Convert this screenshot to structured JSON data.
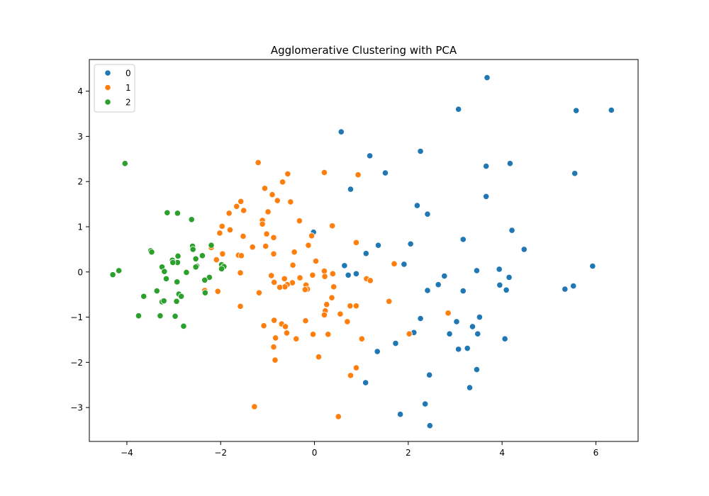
{
  "chart_data": {
    "type": "scatter",
    "title": "Agglomerative Clustering with PCA",
    "xlabel": "",
    "ylabel": "",
    "xlim": [
      -4.8,
      6.9
    ],
    "ylim": [
      -3.75,
      4.7
    ],
    "xticks": [
      -4,
      -2,
      0,
      2,
      4,
      6
    ],
    "yticks": [
      -3,
      -2,
      -1,
      0,
      1,
      2,
      3,
      4
    ],
    "grid": false,
    "legend": {
      "position": "top-left",
      "entries": [
        "0",
        "1",
        "2"
      ]
    },
    "series": [
      {
        "name": "0",
        "color": "#1f77b4",
        "points": [
          [
            3.68,
            4.3
          ],
          [
            3.07,
            3.6
          ],
          [
            5.58,
            3.57
          ],
          [
            6.33,
            3.58
          ],
          [
            0.57,
            3.1
          ],
          [
            2.26,
            2.67
          ],
          [
            1.18,
            2.57
          ],
          [
            1.51,
            2.19
          ],
          [
            3.66,
            2.34
          ],
          [
            4.17,
            2.4
          ],
          [
            5.55,
            2.18
          ],
          [
            0.77,
            1.83
          ],
          [
            3.66,
            1.67
          ],
          [
            2.19,
            1.47
          ],
          [
            2.41,
            1.28
          ],
          [
            4.21,
            0.92
          ],
          [
            3.17,
            0.72
          ],
          [
            -0.02,
            0.88
          ],
          [
            1.36,
            0.59
          ],
          [
            2.05,
            0.62
          ],
          [
            4.47,
            0.5
          ],
          [
            1.1,
            0.41
          ],
          [
            0.64,
            0.14
          ],
          [
            1.91,
            0.17
          ],
          [
            5.93,
            0.13
          ],
          [
            0.89,
            -0.04
          ],
          [
            0.72,
            -0.07
          ],
          [
            3.46,
            0.03
          ],
          [
            3.94,
            0.06
          ],
          [
            2.77,
            -0.09
          ],
          [
            4.15,
            -0.12
          ],
          [
            2.64,
            -0.28
          ],
          [
            3.95,
            -0.29
          ],
          [
            5.52,
            -0.31
          ],
          [
            5.34,
            -0.38
          ],
          [
            2.41,
            -0.41
          ],
          [
            3.17,
            -0.42
          ],
          [
            4.09,
            -0.4
          ],
          [
            2.26,
            -1.03
          ],
          [
            3.52,
            -1.0
          ],
          [
            3.03,
            -1.1
          ],
          [
            3.37,
            -1.21
          ],
          [
            2.88,
            -1.37
          ],
          [
            3.48,
            -1.37
          ],
          [
            2.12,
            -1.34
          ],
          [
            4.06,
            -1.48
          ],
          [
            1.73,
            -1.58
          ],
          [
            3.26,
            -1.69
          ],
          [
            3.07,
            -1.71
          ],
          [
            1.34,
            -1.76
          ],
          [
            3.46,
            -2.16
          ],
          [
            2.45,
            -2.28
          ],
          [
            1.09,
            -2.45
          ],
          [
            3.31,
            -2.56
          ],
          [
            2.36,
            -2.92
          ],
          [
            1.83,
            -3.15
          ],
          [
            2.46,
            -3.4
          ]
        ]
      },
      {
        "name": "1",
        "color": "#ff7f0e",
        "points": [
          [
            -1.2,
            2.42
          ],
          [
            0.21,
            2.2
          ],
          [
            -0.57,
            2.17
          ],
          [
            0.93,
            2.15
          ],
          [
            -0.68,
            1.99
          ],
          [
            -1.06,
            1.85
          ],
          [
            -0.9,
            1.71
          ],
          [
            -0.79,
            1.58
          ],
          [
            -0.51,
            1.55
          ],
          [
            -1.57,
            1.56
          ],
          [
            -1.66,
            1.45
          ],
          [
            -1.51,
            1.36
          ],
          [
            -0.99,
            1.33
          ],
          [
            -1.82,
            1.3
          ],
          [
            -1.11,
            1.14
          ],
          [
            -0.32,
            1.13
          ],
          [
            -1.11,
            1.06
          ],
          [
            0.38,
            1.02
          ],
          [
            -1.97,
            1.01
          ],
          [
            -1.8,
            0.93
          ],
          [
            -2.02,
            0.86
          ],
          [
            -1.02,
            0.84
          ],
          [
            -0.87,
            0.76
          ],
          [
            -1.52,
            0.79
          ],
          [
            -0.06,
            0.8
          ],
          [
            0.89,
            0.65
          ],
          [
            -0.13,
            0.59
          ],
          [
            -1.04,
            0.57
          ],
          [
            -1.32,
            0.55
          ],
          [
            -2.2,
            0.54
          ],
          [
            -0.43,
            0.44
          ],
          [
            -0.87,
            0.4
          ],
          [
            -1.62,
            0.37
          ],
          [
            -1.56,
            0.36
          ],
          [
            -1.96,
            0.4
          ],
          [
            -2.09,
            0.27
          ],
          [
            0.03,
            0.24
          ],
          [
            1.7,
            0.18
          ],
          [
            -0.46,
            0.15
          ],
          [
            0.21,
            0.02
          ],
          [
            -1.58,
            -0.02
          ],
          [
            0.39,
            -0.04
          ],
          [
            -0.04,
            -0.07
          ],
          [
            0.22,
            -0.1
          ],
          [
            -0.92,
            -0.08
          ],
          [
            -0.31,
            -0.13
          ],
          [
            -0.64,
            -0.15
          ],
          [
            1.11,
            -0.15
          ],
          [
            1.19,
            -0.19
          ],
          [
            -0.86,
            -0.23
          ],
          [
            -0.47,
            -0.24
          ],
          [
            -0.58,
            -0.28
          ],
          [
            -0.63,
            -0.33
          ],
          [
            -0.74,
            -0.34
          ],
          [
            -0.18,
            -0.29
          ],
          [
            0.41,
            -0.33
          ],
          [
            -0.15,
            -0.38
          ],
          [
            -0.2,
            -0.39
          ],
          [
            -1.18,
            -0.46
          ],
          [
            -2.06,
            -0.43
          ],
          [
            -2.34,
            -0.41
          ],
          [
            0.37,
            -0.57
          ],
          [
            1.59,
            -0.65
          ],
          [
            0.26,
            -0.72
          ],
          [
            -1.58,
            -0.76
          ],
          [
            0.76,
            -0.75
          ],
          [
            0.89,
            -0.75
          ],
          [
            0.23,
            -0.86
          ],
          [
            0.21,
            -0.95
          ],
          [
            0.55,
            -0.93
          ],
          [
            2.85,
            -0.91
          ],
          [
            -0.86,
            -1.07
          ],
          [
            -0.19,
            -1.08
          ],
          [
            0.7,
            -1.1
          ],
          [
            -0.7,
            -1.15
          ],
          [
            -1.08,
            -1.19
          ],
          [
            -0.62,
            -1.21
          ],
          [
            -0.59,
            -1.35
          ],
          [
            0.29,
            -1.38
          ],
          [
            -0.03,
            -1.38
          ],
          [
            2.02,
            -1.37
          ],
          [
            -0.83,
            -1.46
          ],
          [
            -0.39,
            -1.48
          ],
          [
            1.01,
            -1.48
          ],
          [
            -0.87,
            -1.66
          ],
          [
            0.09,
            -1.88
          ],
          [
            -0.84,
            -1.95
          ],
          [
            0.89,
            -2.12
          ],
          [
            0.77,
            -2.29
          ],
          [
            -1.28,
            -2.98
          ],
          [
            0.51,
            -3.2
          ]
        ]
      },
      {
        "name": "2",
        "color": "#2ca02c",
        "points": [
          [
            -4.04,
            2.4
          ],
          [
            -3.14,
            1.31
          ],
          [
            -2.92,
            1.3
          ],
          [
            -2.62,
            1.16
          ],
          [
            -2.2,
            0.59
          ],
          [
            -2.6,
            0.57
          ],
          [
            -2.59,
            0.5
          ],
          [
            -3.49,
            0.47
          ],
          [
            -3.47,
            0.44
          ],
          [
            -2.39,
            0.36
          ],
          [
            -2.91,
            0.35
          ],
          [
            -2.53,
            0.29
          ],
          [
            -3.03,
            0.26
          ],
          [
            -2.92,
            0.21
          ],
          [
            -3.02,
            0.21
          ],
          [
            -1.98,
            0.16
          ],
          [
            -1.93,
            0.12
          ],
          [
            -2.51,
            0.13
          ],
          [
            -2.53,
            0.11
          ],
          [
            -1.98,
            0.07
          ],
          [
            -3.25,
            0.11
          ],
          [
            -3.2,
            0.01
          ],
          [
            -2.73,
            -0.01
          ],
          [
            -4.17,
            0.03
          ],
          [
            -4.3,
            -0.06
          ],
          [
            -2.24,
            -0.12
          ],
          [
            -3.16,
            -0.15
          ],
          [
            -2.34,
            -0.18
          ],
          [
            -2.93,
            -0.22
          ],
          [
            -3.36,
            -0.42
          ],
          [
            -2.33,
            -0.46
          ],
          [
            -2.89,
            -0.49
          ],
          [
            -2.84,
            -0.54
          ],
          [
            -3.64,
            -0.54
          ],
          [
            -2.94,
            -0.65
          ],
          [
            -3.25,
            -0.66
          ],
          [
            -3.21,
            -0.64
          ],
          [
            -3.29,
            -0.97
          ],
          [
            -2.97,
            -0.98
          ],
          [
            -3.75,
            -0.97
          ],
          [
            -2.79,
            -1.2
          ]
        ]
      }
    ]
  }
}
